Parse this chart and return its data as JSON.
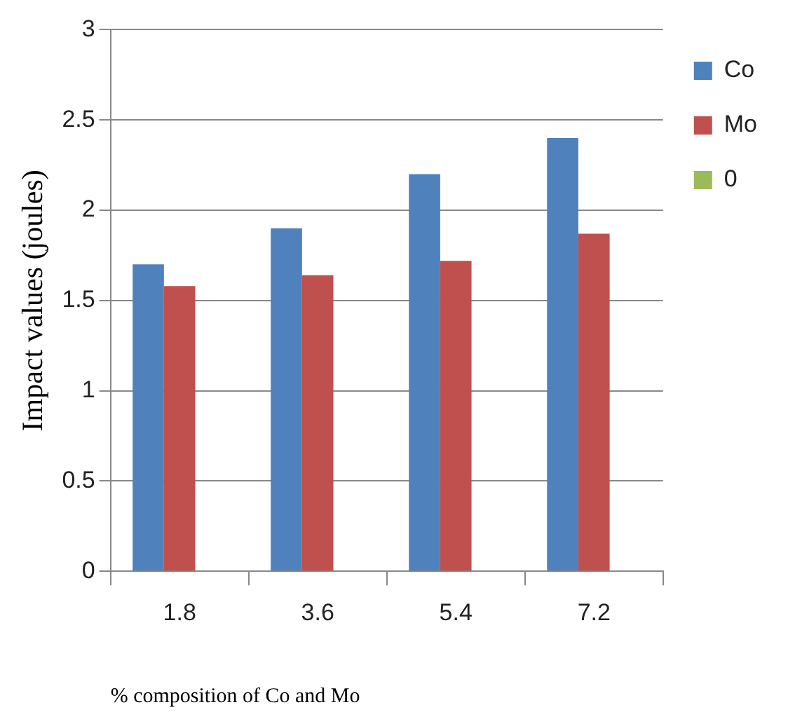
{
  "chart_data": {
    "type": "bar",
    "xlabel": "% composition of Co and Mo",
    "ylabel": "Impact values (joules)",
    "categories": [
      "1.8",
      "3.6",
      "5.4",
      "7.2"
    ],
    "series": [
      {
        "name": "Co",
        "color": "#4f81bd",
        "values": [
          1.7,
          1.9,
          2.2,
          2.4
        ]
      },
      {
        "name": "Mo",
        "color": "#c0504d",
        "values": [
          1.58,
          1.64,
          1.72,
          1.87
        ]
      },
      {
        "name": "0",
        "color": "#9bbb59",
        "values": [
          0,
          0,
          0,
          0
        ]
      }
    ],
    "ylim": [
      0,
      3
    ],
    "yticks": [
      0,
      0.5,
      1,
      1.5,
      2,
      2.5,
      3
    ],
    "grid": "y",
    "legend": "top right"
  }
}
